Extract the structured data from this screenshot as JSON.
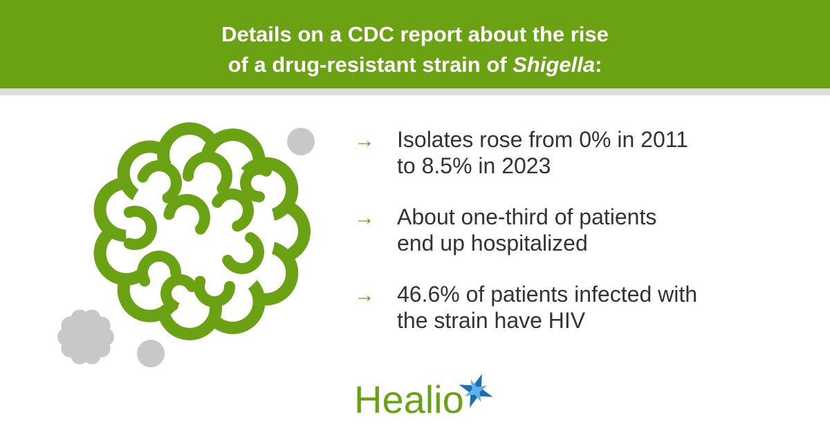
{
  "header": {
    "title_line1": "Details on a CDC report about the rise",
    "title_line2_start": "of a drug-resistant strain of ",
    "title_italic": "Shigella",
    "title_end": ":"
  },
  "items": [
    {
      "lines": [
        "Isolates rose from 0% in 2011",
        "to 8.5% in 2023"
      ]
    },
    {
      "lines": [
        "About one-third of patients",
        "end up hospitalized"
      ]
    },
    {
      "lines": [
        "46.6% of patients infected with",
        "the strain have HIV"
      ]
    }
  ],
  "logo": {
    "text": "Healio"
  }
}
